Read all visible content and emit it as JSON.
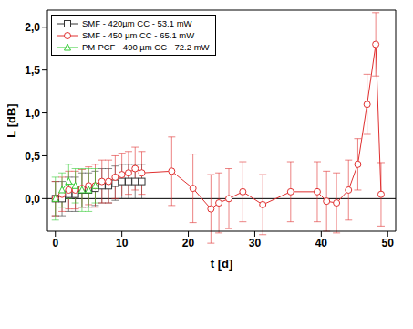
{
  "chart_data": {
    "type": "line",
    "x_label": "t [d]",
    "y_label": "L [dB]",
    "xlim": [
      -1.2,
      51.2
    ],
    "ylim": [
      -0.38,
      2.2
    ],
    "xticks": [
      0,
      10,
      20,
      30,
      40,
      50
    ],
    "yticks": [
      {
        "value": 0,
        "label": "0,0"
      },
      {
        "value": 0.5,
        "label": "0,5"
      },
      {
        "value": 1,
        "label": "1,0"
      },
      {
        "value": 1.5,
        "label": "1,5"
      },
      {
        "value": 2,
        "label": "2,0"
      }
    ],
    "grid": false,
    "legend": "upper left",
    "series": [
      {
        "name": "SMF - 420µm CC - 53.1 mW",
        "color": "#333333",
        "marker": "square",
        "x": [
          0,
          1,
          2,
          3,
          4,
          5,
          6,
          7,
          8,
          9,
          10,
          11,
          12,
          13
        ],
        "values": [
          0,
          0,
          0.05,
          0.05,
          0.1,
          0.1,
          0.12,
          0.15,
          0.15,
          0.18,
          0.2,
          0.2,
          0.2,
          0.2
        ],
        "errors": [
          0.2,
          0.2,
          0.2,
          0.2,
          0.2,
          0.2,
          0.2,
          0.2,
          0.2,
          0.2,
          0.2,
          0.2,
          0.2,
          0.2
        ]
      },
      {
        "name": "SMF - 450 µm CC - 65.1 mW",
        "color": "#e03030",
        "marker": "circle",
        "x": [
          0,
          1,
          2,
          3,
          4,
          5,
          6,
          7,
          8,
          9,
          10,
          11,
          12,
          13,
          17.5,
          20.7,
          23.4,
          24.6,
          26.1,
          28.2,
          31.2,
          35.4,
          39.4,
          40.8,
          42.3,
          44.1,
          45.5,
          46.9,
          48.2,
          49.0
        ],
        "values": [
          0,
          0.05,
          0.1,
          0.1,
          0.12,
          0.15,
          0.15,
          0.2,
          0.2,
          0.25,
          0.28,
          0.3,
          0.35,
          0.3,
          0.32,
          0.12,
          -0.12,
          -0.05,
          0.0,
          0.08,
          -0.07,
          0.08,
          0.08,
          -0.03,
          -0.05,
          0.1,
          0.4,
          1.1,
          1.8,
          0.05
        ],
        "errors": [
          0.2,
          0.2,
          0.22,
          0.22,
          0.22,
          0.22,
          0.25,
          0.25,
          0.25,
          0.25,
          0.25,
          0.25,
          0.25,
          0.25,
          0.4,
          0.4,
          0.4,
          0.35,
          0.35,
          0.35,
          0.35,
          0.35,
          0.35,
          0.35,
          0.35,
          0.35,
          0.3,
          0.35,
          0.37,
          0.37
        ]
      },
      {
        "name": "PM-PCF - 490 µm CC - 72.2 mW",
        "color": "#33cc33",
        "marker": "triangle",
        "x": [
          0,
          1,
          2,
          3,
          4,
          5,
          6
        ],
        "values": [
          0,
          0.1,
          0.2,
          0.15,
          0.1,
          0.1,
          0.15
        ],
        "errors": [
          0.25,
          0.2,
          0.2,
          0.2,
          0.25,
          0.25,
          0.2
        ]
      }
    ]
  }
}
